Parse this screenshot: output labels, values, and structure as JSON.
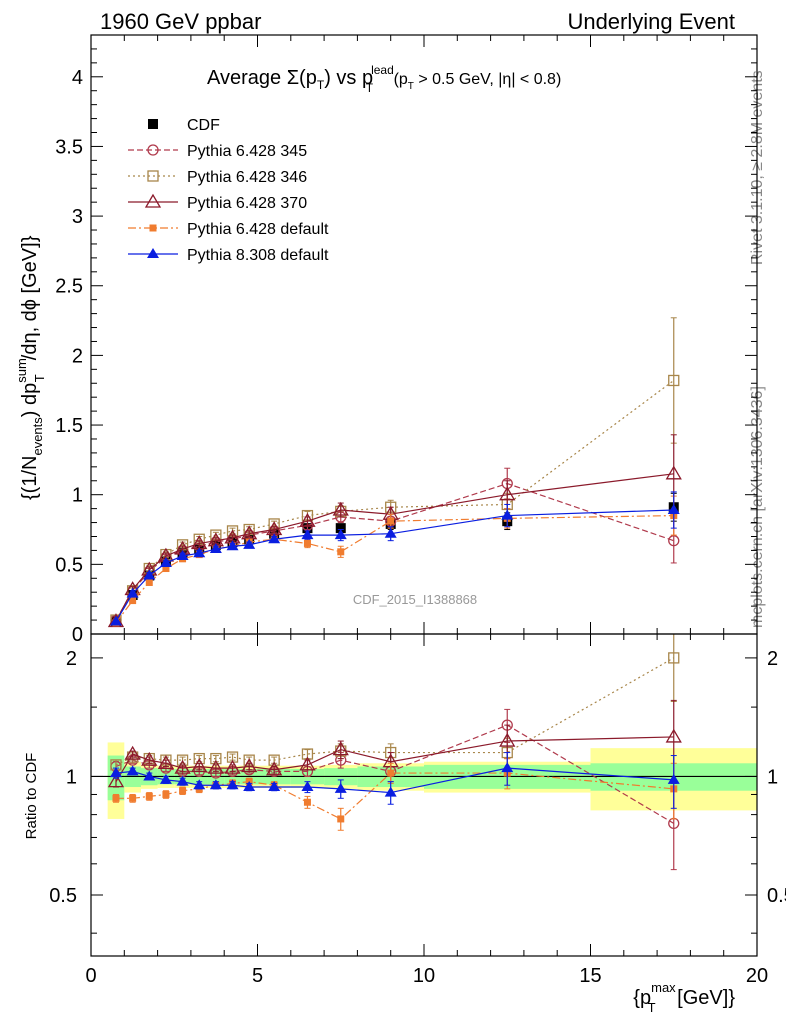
{
  "header": {
    "left": "1960 GeV ppbar",
    "right": "Underlying Event"
  },
  "side_labels": {
    "rivet": "Rivet 3.1.10, ≥ 2.8M events",
    "mcplots": "mcplots.cern.ch [arXiv:1306.3436]"
  },
  "watermark": "CDF_2015_I1388868",
  "chart_data": [
    {
      "type": "scatter",
      "panel": "main",
      "title": "Average Σ(p_T) vs p_T^lead (p_T > 0.5 GeV, |η| < 0.8)",
      "title_parts": {
        "a": "Average ",
        "sigma": "Σ(p",
        "sub": "T",
        "b": ") vs p",
        "sup": "lead",
        "c": " (p",
        "d": " > 0.5 GeV, |η| < 0.8)"
      },
      "ylabel": "{(1/N_events) dp_T^sum/dη, dϕ [GeV]}",
      "ylabel_parts": {
        "a": "{(1/N",
        "sub1": "events",
        "b": ") dp",
        "sup": "sum",
        "sub2": "T",
        "c": "/dη, dϕ [GeV]}"
      },
      "xlim": [
        0,
        20
      ],
      "ylim": [
        0,
        4.3
      ],
      "yticks": [
        0,
        0.5,
        1,
        1.5,
        2,
        2.5,
        3,
        3.5,
        4
      ],
      "ytick_labels": [
        "0",
        "0.5",
        "1",
        "1.5",
        "2",
        "2.5",
        "3",
        "3.5",
        "4"
      ],
      "legend_position": "top-left",
      "x": [
        0.75,
        1.25,
        1.75,
        2.25,
        2.75,
        3.25,
        3.75,
        4.25,
        4.75,
        5.5,
        6.5,
        7.5,
        9.0,
        12.5,
        17.5
      ],
      "series": [
        {
          "name": "CDF",
          "color": "#000000",
          "marker": "filled-square",
          "line": "none",
          "values": [
            0.09,
            0.28,
            0.42,
            0.52,
            0.58,
            0.61,
            0.64,
            0.66,
            0.68,
            0.72,
            0.76,
            0.76,
            0.79,
            0.81,
            0.91
          ],
          "errors": [
            0.01,
            0.02,
            0.02,
            0.02,
            0.02,
            0.02,
            0.02,
            0.02,
            0.02,
            0.02,
            0.03,
            0.03,
            0.04,
            0.06,
            0.1
          ]
        },
        {
          "name": "Pythia 6.428 345",
          "color": "#b03a4c",
          "marker": "open-circle",
          "line": "dashed",
          "values": [
            0.1,
            0.31,
            0.45,
            0.55,
            0.6,
            0.63,
            0.66,
            0.68,
            0.71,
            0.74,
            0.78,
            0.84,
            0.81,
            1.08,
            0.67
          ],
          "errors": [
            0.01,
            0.02,
            0.02,
            0.02,
            0.02,
            0.02,
            0.02,
            0.02,
            0.02,
            0.02,
            0.03,
            0.04,
            0.05,
            0.11,
            0.16
          ]
        },
        {
          "name": "Pythia 6.428 346",
          "color": "#a8864a",
          "marker": "open-square",
          "line": "dotted",
          "values": [
            0.1,
            0.31,
            0.47,
            0.57,
            0.64,
            0.68,
            0.71,
            0.74,
            0.75,
            0.79,
            0.85,
            0.88,
            0.91,
            0.93,
            1.82
          ],
          "errors": [
            0.01,
            0.02,
            0.02,
            0.02,
            0.02,
            0.02,
            0.02,
            0.02,
            0.02,
            0.02,
            0.03,
            0.04,
            0.05,
            0.08,
            0.45
          ]
        },
        {
          "name": "Pythia 6.428 370",
          "color": "#8b1a2b",
          "marker": "open-triangle",
          "line": "solid",
          "values": [
            0.09,
            0.32,
            0.46,
            0.56,
            0.61,
            0.65,
            0.67,
            0.69,
            0.72,
            0.75,
            0.81,
            0.89,
            0.86,
            1.0,
            1.15
          ],
          "errors": [
            0.01,
            0.02,
            0.02,
            0.02,
            0.02,
            0.02,
            0.02,
            0.02,
            0.02,
            0.02,
            0.03,
            0.05,
            0.05,
            0.1,
            0.28
          ]
        },
        {
          "name": "Pythia 6.428 default",
          "color": "#f07c2f",
          "marker": "filled-small-square",
          "line": "dashdot",
          "values": [
            0.08,
            0.24,
            0.37,
            0.47,
            0.54,
            0.57,
            0.61,
            0.63,
            0.66,
            0.68,
            0.65,
            0.59,
            0.81,
            0.83,
            0.85
          ],
          "errors": [
            0.01,
            0.02,
            0.02,
            0.02,
            0.02,
            0.02,
            0.02,
            0.02,
            0.02,
            0.02,
            0.03,
            0.04,
            0.05,
            0.07,
            0.14
          ]
        },
        {
          "name": "Pythia 8.308 default",
          "color": "#0a1ee0",
          "marker": "filled-triangle",
          "line": "solid",
          "values": [
            0.09,
            0.29,
            0.42,
            0.51,
            0.56,
            0.58,
            0.61,
            0.63,
            0.64,
            0.68,
            0.71,
            0.71,
            0.72,
            0.85,
            0.89
          ],
          "errors": [
            0.01,
            0.02,
            0.02,
            0.02,
            0.02,
            0.02,
            0.02,
            0.02,
            0.02,
            0.02,
            0.03,
            0.04,
            0.05,
            0.08,
            0.13
          ]
        }
      ]
    },
    {
      "type": "scatter",
      "panel": "ratio",
      "ylabel": "Ratio to CDF",
      "xlabel": "{p_T^max [GeV]}",
      "xlabel_parts": {
        "a": "{p",
        "sup": "max",
        "sub": "T",
        "b": " [GeV]}"
      },
      "xlim": [
        0,
        20
      ],
      "ylim": [
        0.35,
        2.3
      ],
      "y_scale": "log",
      "xticks": [
        0,
        5,
        10,
        15,
        20
      ],
      "xtick_labels": [
        "0",
        "5",
        "10",
        "15",
        "20"
      ],
      "yticks": [
        0.5,
        1,
        2
      ],
      "ytick_labels": [
        "0.5",
        "1",
        "2"
      ],
      "bands": {
        "x_edges": [
          0.5,
          1.0,
          1.5,
          2.0,
          2.5,
          3.0,
          3.5,
          4.0,
          4.5,
          5.0,
          6.0,
          7.0,
          8.0,
          10.0,
          15.0,
          20.0
        ],
        "inner_halfwidth": [
          0.13,
          0.06,
          0.05,
          0.045,
          0.045,
          0.045,
          0.045,
          0.045,
          0.045,
          0.045,
          0.045,
          0.05,
          0.06,
          0.07,
          0.08
        ],
        "outer_halfwidth": [
          0.22,
          0.09,
          0.07,
          0.065,
          0.065,
          0.065,
          0.065,
          0.065,
          0.065,
          0.065,
          0.065,
          0.07,
          0.08,
          0.09,
          0.18
        ],
        "inner_color": "#99ff99",
        "outer_color": "#ffff99"
      },
      "x": [
        0.75,
        1.25,
        1.75,
        2.25,
        2.75,
        3.25,
        3.75,
        4.25,
        4.75,
        5.5,
        6.5,
        7.5,
        9.0,
        12.5,
        17.5
      ],
      "series": [
        {
          "name": "Pythia 6.428 345",
          "color": "#b03a4c",
          "marker": "open-circle",
          "line": "dashed",
          "values": [
            1.06,
            1.1,
            1.07,
            1.05,
            1.03,
            1.03,
            1.02,
            1.03,
            1.04,
            1.03,
            1.03,
            1.1,
            1.03,
            1.35,
            0.76
          ],
          "errors": [
            0.03,
            0.02,
            0.02,
            0.02,
            0.02,
            0.02,
            0.02,
            0.02,
            0.02,
            0.02,
            0.03,
            0.05,
            0.06,
            0.13,
            0.18
          ]
        },
        {
          "name": "Pythia 6.428 346",
          "color": "#a8864a",
          "marker": "open-square",
          "line": "dotted",
          "values": [
            1.07,
            1.12,
            1.11,
            1.1,
            1.1,
            1.11,
            1.11,
            1.12,
            1.1,
            1.1,
            1.14,
            1.16,
            1.15,
            1.15,
            2.0
          ],
          "errors": [
            0.03,
            0.02,
            0.02,
            0.02,
            0.02,
            0.02,
            0.02,
            0.02,
            0.02,
            0.02,
            0.03,
            0.05,
            0.06,
            0.1,
            0.45
          ]
        },
        {
          "name": "Pythia 6.428 370",
          "color": "#8b1a2b",
          "marker": "open-triangle",
          "line": "solid",
          "values": [
            0.97,
            1.14,
            1.1,
            1.08,
            1.05,
            1.06,
            1.05,
            1.05,
            1.06,
            1.04,
            1.07,
            1.17,
            1.09,
            1.23,
            1.26
          ],
          "errors": [
            0.03,
            0.02,
            0.02,
            0.02,
            0.02,
            0.02,
            0.02,
            0.02,
            0.02,
            0.02,
            0.03,
            0.06,
            0.06,
            0.12,
            0.3
          ]
        },
        {
          "name": "Pythia 6.428 default",
          "color": "#f07c2f",
          "marker": "filled-small-square",
          "line": "dashdot",
          "values": [
            0.88,
            0.88,
            0.89,
            0.9,
            0.92,
            0.93,
            0.95,
            0.96,
            0.97,
            0.95,
            0.86,
            0.78,
            1.02,
            1.02,
            0.93
          ],
          "errors": [
            0.02,
            0.02,
            0.02,
            0.02,
            0.02,
            0.02,
            0.02,
            0.02,
            0.02,
            0.02,
            0.03,
            0.05,
            0.06,
            0.09,
            0.15
          ]
        },
        {
          "name": "Pythia 8.308 default",
          "color": "#0a1ee0",
          "marker": "filled-triangle",
          "line": "solid",
          "values": [
            1.02,
            1.03,
            1.0,
            0.98,
            0.97,
            0.95,
            0.95,
            0.95,
            0.94,
            0.94,
            0.94,
            0.93,
            0.91,
            1.05,
            0.98
          ],
          "errors": [
            0.03,
            0.02,
            0.02,
            0.02,
            0.02,
            0.02,
            0.02,
            0.02,
            0.02,
            0.02,
            0.03,
            0.05,
            0.06,
            0.1,
            0.15
          ]
        }
      ]
    }
  ]
}
